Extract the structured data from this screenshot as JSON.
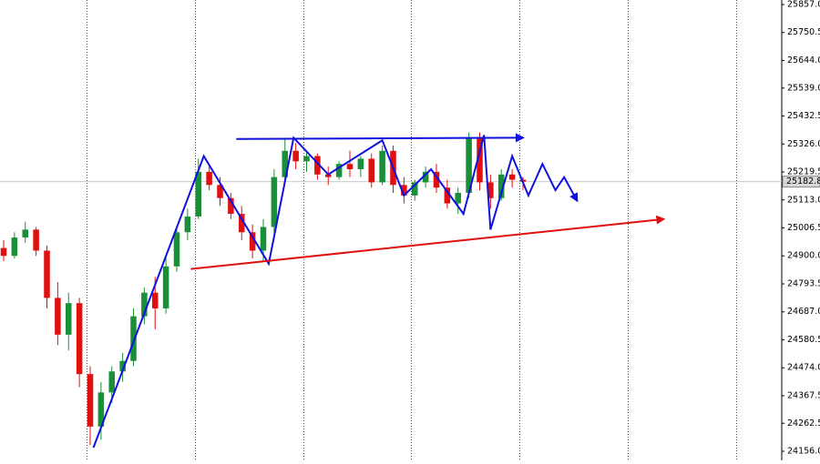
{
  "chart_data": {
    "type": "candlestick",
    "ylim": [
      24121.4,
      25874.3
    ],
    "xlim": [
      0,
      72
    ],
    "yticks": [
      {
        "value": 25857.0,
        "label": "25857.0"
      },
      25750.5,
      {
        "value": 25644.0,
        "label": "25644.0"
      },
      {
        "value": 25539.0,
        "label": "25539.0"
      },
      25432.5,
      {
        "value": 25326.0,
        "label": "25326.0"
      },
      25219.5,
      {
        "value": 25113.0,
        "label": "25113.0"
      },
      25006.5,
      {
        "value": 24900.0,
        "label": "24900.0"
      },
      24793.5,
      {
        "value": 24687.0,
        "label": "24687.0"
      },
      24580.5,
      {
        "value": 24474.0,
        "label": "24474.0"
      },
      24367.5,
      24262.5,
      {
        "value": 24156.0,
        "label": "24156.0"
      }
    ],
    "period_separators": [
      8,
      18,
      28,
      38,
      48,
      58,
      68
    ],
    "up_color": "#1a8f3a",
    "down_color": "#e01010",
    "last_price": 25182.8,
    "open": [
      24930,
      24900,
      24970,
      25000,
      24920,
      24740,
      24600,
      24720,
      24450,
      24250,
      24380,
      24460,
      24500,
      24670,
      24760,
      24700,
      24860,
      24990,
      25050,
      25220,
      25170,
      25120,
      25060,
      24990,
      24920,
      25010,
      25200,
      25300,
      25260,
      25280,
      25210,
      25200,
      25250,
      25230,
      25270,
      25180,
      25300,
      25170,
      25130,
      25180,
      25220,
      25160,
      25100,
      25140,
      25350,
      25180,
      25120,
      25210,
      25190
    ],
    "high": [
      24960,
      24990,
      25030,
      25010,
      24940,
      24800,
      24760,
      24740,
      24480,
      24420,
      24480,
      24530,
      24700,
      24780,
      24820,
      24900,
      25010,
      25080,
      25270,
      25250,
      25200,
      25140,
      25090,
      25020,
      25040,
      25230,
      25350,
      25330,
      25300,
      25290,
      25240,
      25260,
      25300,
      25280,
      25290,
      25320,
      25320,
      25200,
      25190,
      25240,
      25250,
      25190,
      25160,
      25370,
      25370,
      25210,
      25230,
      25230,
      25200
    ],
    "low": [
      24880,
      24890,
      24950,
      24900,
      24700,
      24560,
      24540,
      24400,
      24180,
      24200,
      24340,
      24420,
      24480,
      24640,
      24620,
      24680,
      24840,
      24960,
      25040,
      25150,
      25090,
      25040,
      24960,
      24890,
      24880,
      24990,
      25180,
      25230,
      25220,
      25190,
      25170,
      25190,
      25200,
      25200,
      25160,
      25170,
      25140,
      25100,
      25110,
      25160,
      25140,
      25080,
      25060,
      25120,
      25150,
      25080,
      25110,
      25160,
      25150
    ],
    "close": [
      24900,
      24970,
      25000,
      24920,
      24740,
      24600,
      24720,
      24450,
      24250,
      24380,
      24460,
      24500,
      24670,
      24760,
      24700,
      24860,
      24990,
      25050,
      25220,
      25170,
      25120,
      25060,
      24990,
      24920,
      25010,
      25200,
      25300,
      25260,
      25280,
      25210,
      25200,
      25250,
      25230,
      25270,
      25180,
      25300,
      25170,
      25130,
      25180,
      25220,
      25160,
      25100,
      25140,
      25350,
      25180,
      25120,
      25210,
      25190,
      25182.8
    ],
    "drawings": [
      {
        "color": "#1010e0",
        "x": [
          8.3,
          18.5,
          24.5,
          26.8,
          30,
          35,
          37,
          39.5,
          42.5,
          44.4,
          45,
          47,
          48.5,
          49.8,
          51,
          51.8,
          53
        ],
        "y": [
          24170,
          25280,
          24870,
          25350,
          25210,
          25340,
          25130,
          25230,
          25060,
          25360,
          25000,
          25280,
          25130,
          25250,
          25150,
          25200,
          25110
        ]
      },
      {
        "color": "#1010e0",
        "x": [
          21.5,
          48
        ],
        "y": [
          25345,
          25350
        ]
      },
      {
        "color": "#e01010",
        "x": [
          17.3,
          61
        ],
        "y": [
          24850,
          25040
        ]
      }
    ]
  }
}
